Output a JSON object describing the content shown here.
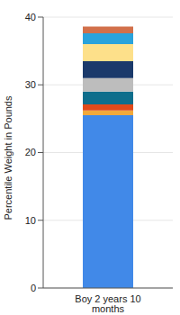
{
  "chart_data": {
    "type": "bar",
    "stacked": true,
    "categories": [
      "Boy 2 years 10 months"
    ],
    "y_label": "Percentile Weight in Pounds",
    "ylim": [
      0,
      40
    ],
    "yticks": [
      0,
      10,
      20,
      30,
      40
    ],
    "grid": true,
    "series": [
      {
        "color": "#4189e8",
        "values": [
          25.5
        ]
      },
      {
        "color": "#f2a93b",
        "values": [
          0.7
        ]
      },
      {
        "color": "#e04a1a",
        "values": [
          0.9
        ]
      },
      {
        "color": "#0e6e8c",
        "values": [
          1.9
        ]
      },
      {
        "color": "#bdbdbd",
        "values": [
          2.0
        ]
      },
      {
        "color": "#1b3a6b",
        "values": [
          2.5
        ]
      },
      {
        "color": "#fde08a",
        "values": [
          2.5
        ]
      },
      {
        "color": "#2aa3dc",
        "values": [
          1.6
        ]
      },
      {
        "color": "#d2704a",
        "values": [
          1.0
        ]
      }
    ]
  }
}
